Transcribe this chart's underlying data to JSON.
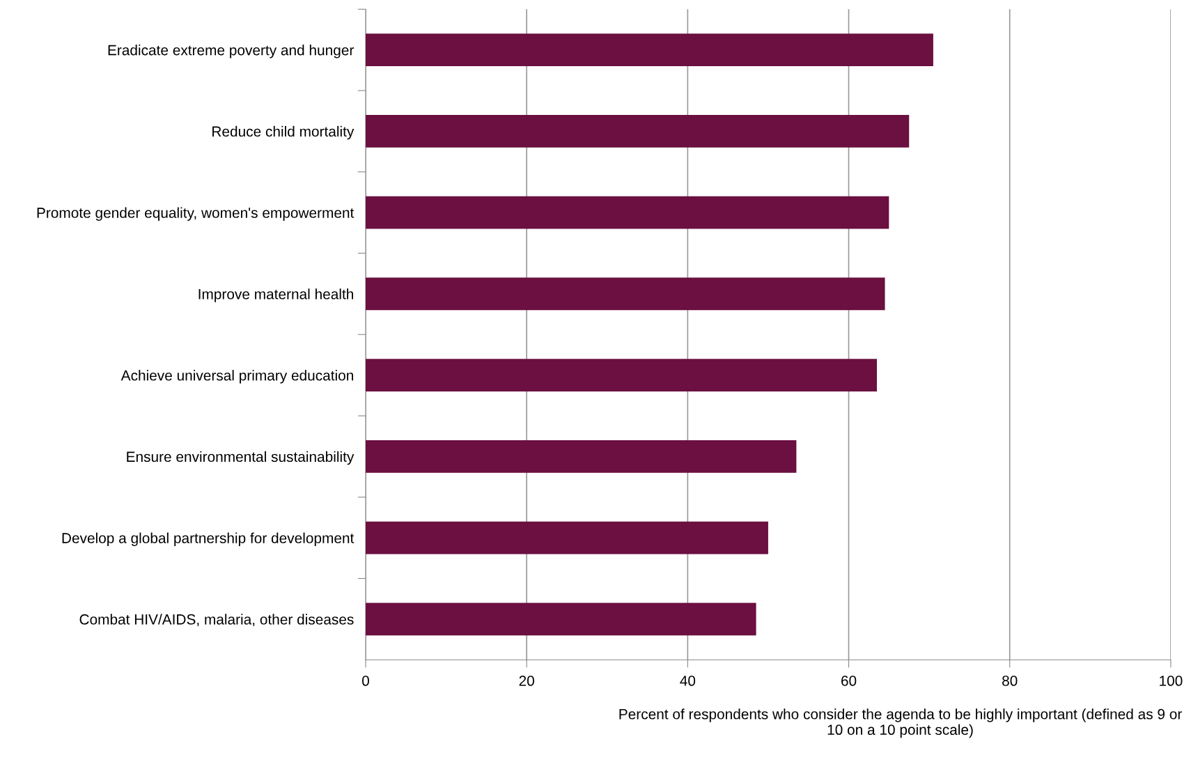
{
  "chart_data": {
    "type": "bar",
    "orientation": "horizontal",
    "categories": [
      "Eradicate extreme poverty and hunger",
      "Reduce child mortality",
      "Promote gender equality, women's empowerment",
      "Improve maternal health",
      "Achieve universal primary education",
      "Ensure environmental sustainability",
      "Develop a global partnership for development",
      "Combat HIV/AIDS, malaria, other diseases"
    ],
    "values": [
      70.5,
      67.5,
      65,
      64.5,
      63.5,
      53.5,
      50,
      48.5
    ],
    "color": "#6b1040",
    "xlim": [
      0,
      100
    ],
    "xticks": [
      0,
      20,
      40,
      60,
      80,
      100
    ],
    "xlabel": "Percent of respondents who consider the agenda to be highly important (defined as 9 or 10 on a 10 point scale)",
    "grid": "x",
    "legend": false
  }
}
